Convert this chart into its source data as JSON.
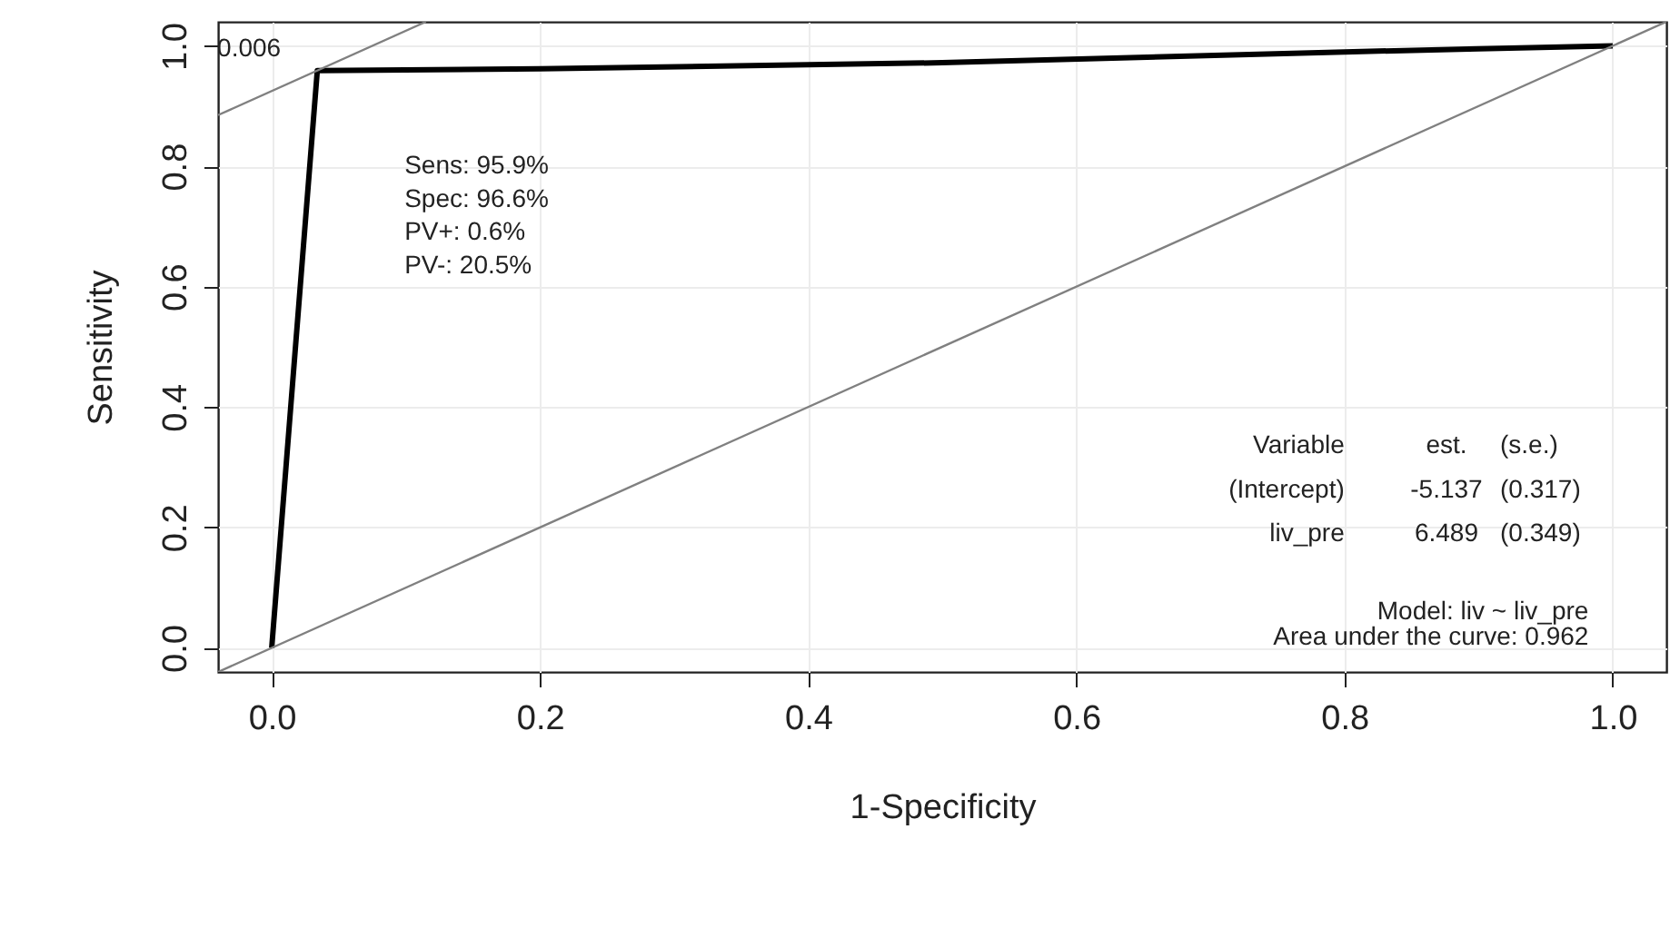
{
  "chart_data": {
    "type": "line",
    "xlabel": "1-Specificity",
    "ylabel": "Sensitivity",
    "xlim": [
      -0.04,
      1.04
    ],
    "ylim": [
      -0.04,
      1.04
    ],
    "xticks": [
      {
        "value": 0,
        "label": "0.0"
      },
      {
        "value": 0.2,
        "label": "0.2"
      },
      {
        "value": 0.4,
        "label": "0.4"
      },
      {
        "value": 0.6,
        "label": "0.6"
      },
      {
        "value": 0.8,
        "label": "0.8"
      },
      {
        "value": 1,
        "label": "1.0"
      }
    ],
    "yticks": [
      {
        "value": 0,
        "label": "0.0"
      },
      {
        "value": 0.2,
        "label": "0.2"
      },
      {
        "value": 0.4,
        "label": "0.4"
      },
      {
        "value": 0.6,
        "label": "0.6"
      },
      {
        "value": 0.8,
        "label": "0.8"
      },
      {
        "value": 1,
        "label": "1.0"
      }
    ],
    "grid": true,
    "marker": "none",
    "series": [
      {
        "color": "#000000",
        "x": [
          0,
          0.034,
          0.2,
          0.5,
          0.8,
          0.9,
          1
        ],
        "values": [
          0,
          0.959,
          0.962,
          0.972,
          0.99,
          0.995,
          1
        ]
      },
      {
        "color": "#808080",
        "x": [
          -0.04,
          1.04
        ],
        "values": [
          -0.04,
          1.04
        ]
      },
      {
        "color": "#808080",
        "x": [
          -0.04,
          0.115
        ],
        "values": [
          0.885,
          1.04
        ]
      }
    ],
    "annotations": [
      {
        "text": "0.006",
        "x": 0.034,
        "y": 0.959
      },
      "Sens: 95.9%",
      "Spec: 96.6%",
      "PV+: 0.6%",
      "PV-: 20.5%",
      "Variable",
      "est.",
      "(s.e.)",
      "(Intercept)",
      "-5.137",
      "(0.317)",
      "liv_pre",
      "6.489",
      "(0.349)",
      "Model: liv ~ liv_pre",
      "Area under the curve: 0.962"
    ]
  }
}
